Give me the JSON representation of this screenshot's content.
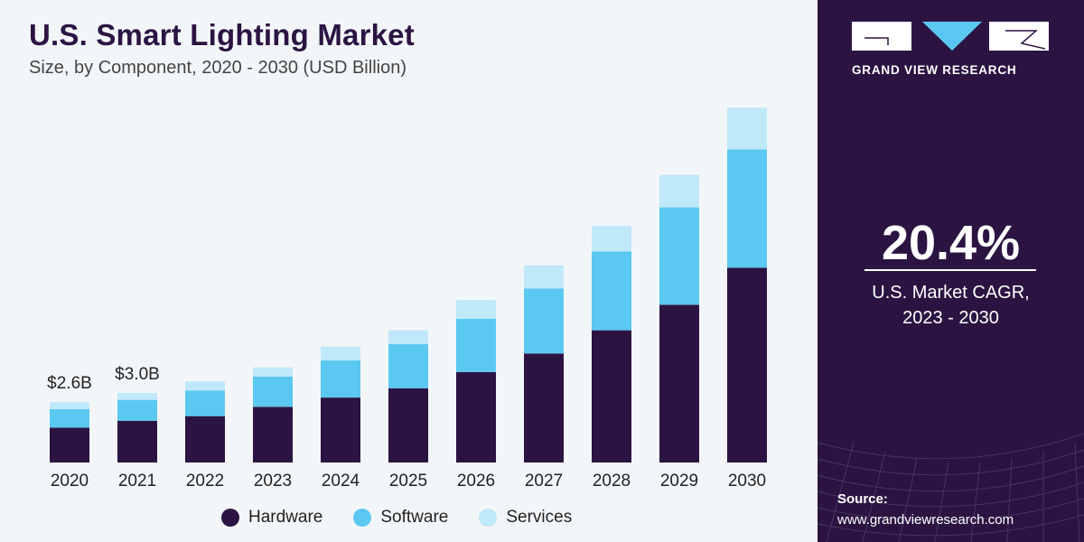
{
  "header": {
    "title": "U.S. Smart Lighting Market",
    "subtitle": "Size, by Component, 2020 - 2030 (USD Billion)"
  },
  "brand": {
    "name": "GRAND VIEW RESEARCH"
  },
  "cagr": {
    "value": "20.4%",
    "label_line1": "U.S. Market CAGR,",
    "label_line2": "2023 - 2030"
  },
  "source": {
    "label": "Source:",
    "url": "www.grandviewresearch.com"
  },
  "colors": {
    "hardware": "#2b1442",
    "software": "#5bc8f2",
    "services": "#bfe8f9",
    "panel": "#2b1442"
  },
  "chart_data": {
    "type": "bar",
    "stacked": true,
    "title": "U.S. Smart Lighting Market",
    "subtitle": "Size, by Component, 2020 - 2030 (USD Billion)",
    "categories": [
      "2020",
      "2021",
      "2022",
      "2023",
      "2024",
      "2025",
      "2026",
      "2027",
      "2028",
      "2029",
      "2030"
    ],
    "series": [
      {
        "name": "Hardware",
        "values": [
          1.5,
          1.8,
          2.0,
          2.4,
          2.8,
          3.2,
          3.9,
          4.7,
          5.7,
          6.8,
          8.4
        ]
      },
      {
        "name": "Software",
        "values": [
          0.8,
          0.9,
          1.1,
          1.3,
          1.6,
          1.9,
          2.3,
          2.8,
          3.4,
          4.2,
          5.1
        ]
      },
      {
        "name": "Services",
        "values": [
          0.3,
          0.3,
          0.4,
          0.4,
          0.6,
          0.6,
          0.8,
          1.0,
          1.1,
          1.4,
          1.8
        ]
      }
    ],
    "data_labels": [
      {
        "category": "2020",
        "text": "$2.6B"
      },
      {
        "category": "2021",
        "text": "$3.0B"
      }
    ],
    "ylim": [
      0,
      15.5
    ],
    "legend_position": "bottom",
    "grid": false
  }
}
